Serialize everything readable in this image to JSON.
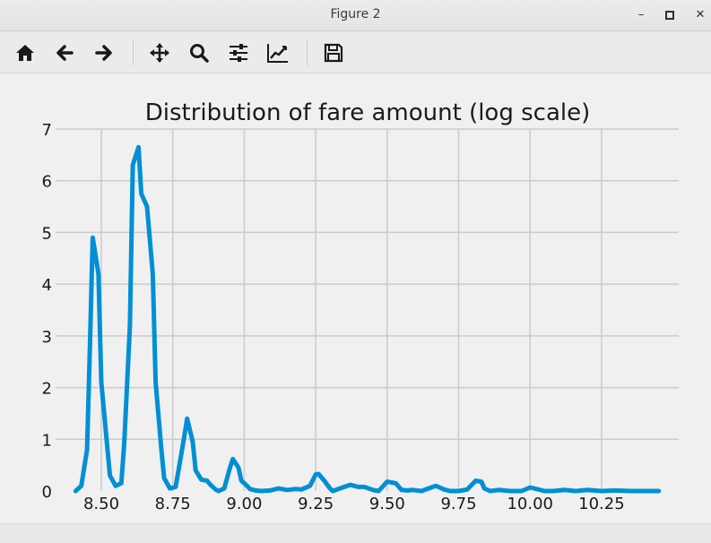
{
  "window": {
    "title": "Figure 2"
  },
  "toolbar": {
    "buttons": [
      {
        "name": "home-icon"
      },
      {
        "name": "back-arrow-icon"
      },
      {
        "name": "forward-arrow-icon"
      },
      {
        "name": "pan-icon"
      },
      {
        "name": "zoom-icon"
      },
      {
        "name": "configure-subplots-icon"
      },
      {
        "name": "edit-axis-icon"
      },
      {
        "name": "save-icon"
      }
    ]
  },
  "chart_data": {
    "type": "line",
    "title": "Distribution of fare amount (log scale)",
    "xlabel": "",
    "ylabel": "",
    "xlim": [
      8.34,
      10.52
    ],
    "ylim": [
      0,
      7
    ],
    "x_ticks": [
      8.5,
      8.75,
      9.0,
      9.25,
      9.5,
      9.75,
      10.0,
      10.25
    ],
    "x_tick_labels": [
      "8.50",
      "8.75",
      "9.00",
      "9.25",
      "9.50",
      "9.75",
      "10.00",
      "10.25"
    ],
    "y_ticks": [
      0,
      1,
      2,
      3,
      4,
      5,
      6,
      7
    ],
    "y_tick_labels": [
      "0",
      "1",
      "2",
      "3",
      "4",
      "5",
      "6",
      "7"
    ],
    "grid": true,
    "line_color": "#008fd5",
    "series": [
      {
        "x": [
          8.41,
          8.43,
          8.45,
          8.46,
          8.47,
          8.49,
          8.5,
          8.52,
          8.53,
          8.55,
          8.57,
          8.58,
          8.6,
          8.61,
          8.63,
          8.64,
          8.66,
          8.68,
          8.69,
          8.71,
          8.72,
          8.74,
          8.76,
          8.77,
          8.79,
          8.8,
          8.82,
          8.83,
          8.85,
          8.87,
          8.88,
          8.9,
          8.91,
          8.93,
          8.95,
          8.96,
          8.98,
          8.99,
          9.01,
          9.02,
          9.04,
          9.06,
          9.09,
          9.12,
          9.15,
          9.18,
          9.2,
          9.23,
          9.25,
          9.26,
          9.28,
          9.3,
          9.31,
          9.34,
          9.37,
          9.4,
          9.42,
          9.45,
          9.47,
          9.5,
          9.53,
          9.55,
          9.57,
          9.59,
          9.62,
          9.65,
          9.67,
          9.7,
          9.72,
          9.75,
          9.78,
          9.81,
          9.83,
          9.84,
          9.86,
          9.89,
          9.93,
          9.97,
          10.0,
          10.03,
          10.05,
          10.08,
          10.12,
          10.16,
          10.2,
          10.25,
          10.3,
          10.35,
          10.4,
          10.45
        ],
        "y": [
          0.0,
          0.1,
          0.8,
          2.8,
          4.9,
          4.2,
          2.1,
          0.9,
          0.3,
          0.1,
          0.15,
          0.9,
          3.2,
          6.3,
          6.65,
          5.75,
          5.5,
          4.2,
          2.1,
          0.8,
          0.25,
          0.05,
          0.08,
          0.4,
          1.05,
          1.4,
          0.95,
          0.4,
          0.22,
          0.2,
          0.13,
          0.03,
          0.0,
          0.05,
          0.45,
          0.62,
          0.45,
          0.2,
          0.1,
          0.04,
          0.01,
          0.0,
          0.01,
          0.05,
          0.02,
          0.04,
          0.03,
          0.1,
          0.32,
          0.33,
          0.2,
          0.05,
          0.0,
          0.06,
          0.12,
          0.08,
          0.08,
          0.02,
          0.0,
          0.18,
          0.15,
          0.02,
          0.01,
          0.02,
          0.0,
          0.06,
          0.1,
          0.03,
          0.0,
          0.0,
          0.03,
          0.2,
          0.18,
          0.05,
          0.0,
          0.02,
          0.0,
          0.0,
          0.07,
          0.03,
          0.0,
          0.0,
          0.02,
          0.0,
          0.02,
          0.0,
          0.01,
          0.0,
          0.0,
          0.0
        ]
      }
    ]
  }
}
